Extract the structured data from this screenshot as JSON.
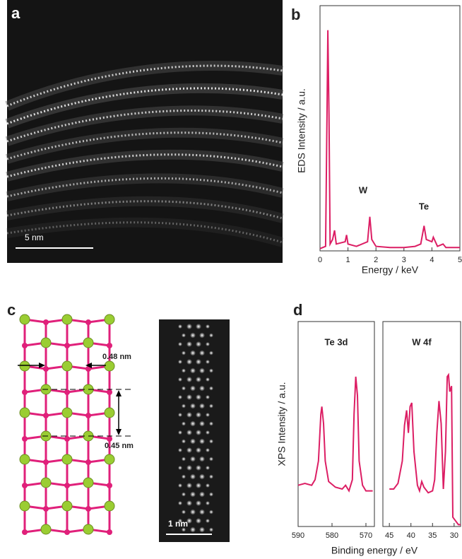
{
  "panels": {
    "a": {
      "label": "a",
      "scale_bar": "5 nm"
    },
    "b": {
      "label": "b"
    },
    "c": {
      "label": "c",
      "spacing_1": "0.48 nm",
      "spacing_2": "0.45 nm",
      "scale_bar": "1 nm"
    },
    "d": {
      "label": "d"
    }
  },
  "chart_data": [
    {
      "type": "line",
      "x_label": "Energy / keV",
      "y_label": "EDS Intensity / a.u.",
      "annotations": [
        "W",
        "Te"
      ],
      "color": "#dc1e64",
      "x": [
        0,
        0.2,
        0.25,
        0.28,
        0.32,
        0.36,
        0.45,
        0.52,
        0.58,
        0.9,
        0.95,
        1.0,
        1.3,
        1.7,
        1.78,
        1.85,
        2.0,
        2.5,
        3.0,
        3.4,
        3.6,
        3.72,
        3.8,
        4.0,
        4.05,
        4.2,
        4.4,
        4.5,
        5
      ],
      "values": [
        1,
        2,
        60,
        97,
        60,
        3,
        5,
        9,
        3,
        4,
        7,
        3,
        2,
        4,
        15,
        5,
        2,
        1.5,
        1.5,
        2,
        3,
        11,
        5,
        4,
        6,
        2,
        3,
        1.5,
        1.5
      ],
      "xlim": [
        0,
        5
      ],
      "xticks": [
        0,
        1,
        2,
        3,
        4,
        5
      ],
      "ylim": [
        0,
        100
      ]
    },
    {
      "type": "line",
      "title": "Te 3d",
      "x_label": "Binding energy / eV",
      "y_label": "XPS Intensity / a.u.",
      "color": "#dc1e64",
      "x": [
        590,
        588,
        586,
        585,
        584,
        583.3,
        583,
        582.5,
        582,
        581,
        579,
        577,
        576,
        575,
        574,
        573.5,
        573,
        572.5,
        572,
        571,
        570,
        568
      ],
      "values": [
        22,
        23,
        22,
        25,
        35,
        60,
        64,
        55,
        35,
        24,
        21,
        20,
        22,
        19,
        25,
        60,
        80,
        70,
        35,
        22,
        19,
        19
      ],
      "xlim": [
        590,
        567.5
      ],
      "xticks": [
        590,
        580,
        570
      ],
      "ylim": [
        0,
        100
      ]
    },
    {
      "type": "line",
      "title": "W 4f",
      "color": "#dc1e64",
      "x": [
        45,
        44,
        43,
        42,
        41.5,
        41,
        40.6,
        40.2,
        39.8,
        39.3,
        38.5,
        38,
        37.5,
        37,
        36,
        35,
        34.5,
        34,
        33.5,
        33,
        32.5,
        32,
        31.6,
        31.3,
        31,
        30.6,
        30.3,
        29,
        28.5
      ],
      "values": [
        20,
        20,
        23,
        35,
        54,
        62,
        50,
        64,
        66,
        40,
        22,
        19,
        24,
        21,
        18,
        19,
        25,
        50,
        67,
        55,
        20,
        40,
        80,
        81,
        72,
        75,
        5,
        1,
        1
      ],
      "xlim": [
        46.5,
        28.5
      ],
      "xticks": [
        45,
        40,
        35,
        30
      ],
      "ylim": [
        0,
        100
      ]
    }
  ]
}
